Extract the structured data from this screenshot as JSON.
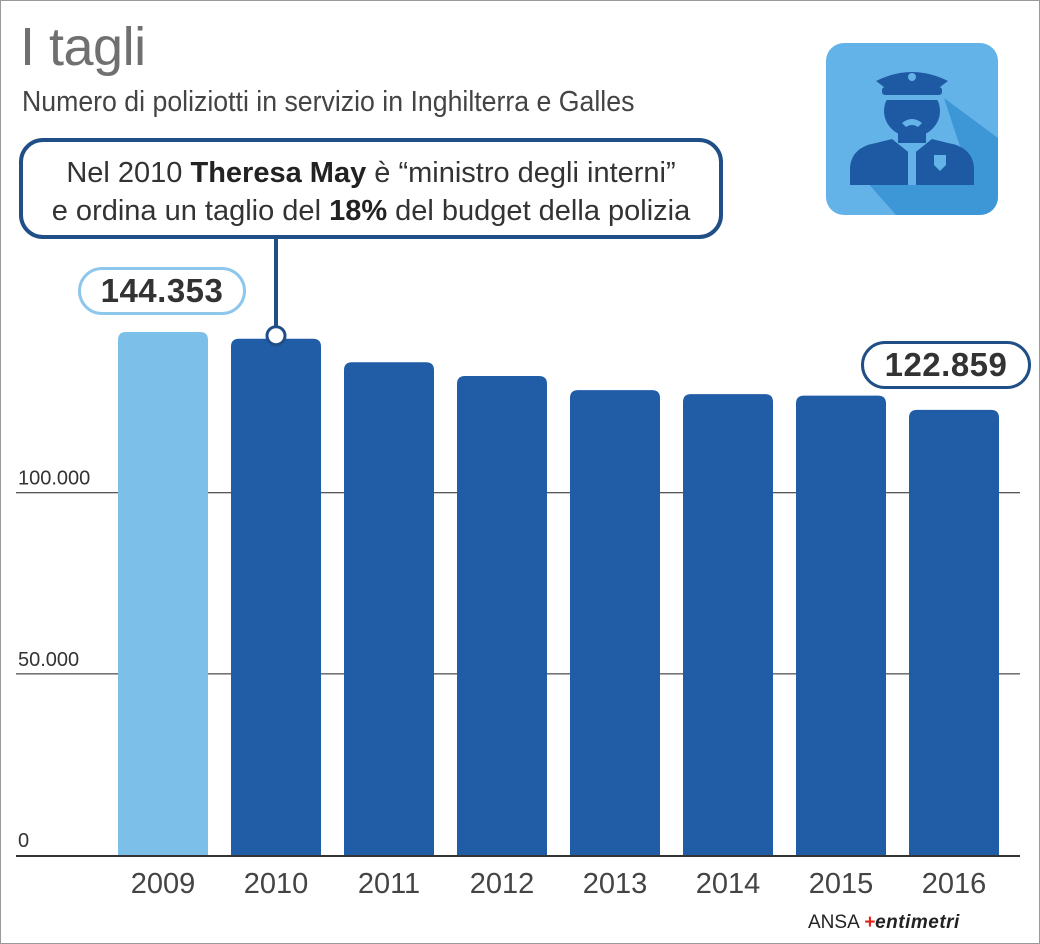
{
  "header": {
    "title": "I tagli",
    "subtitle": "Numero di poliziotti in servizio in Inghilterra e Galles"
  },
  "callout": {
    "line1_prefix": "Nel 2010 ",
    "line1_bold": "Theresa May",
    "line1_suffix": " è “ministro degli interni”",
    "line2_prefix": "e ordina un taglio del ",
    "line2_bold": "18%",
    "line2_suffix": " del budget della polizia",
    "anchor_category": "2010"
  },
  "badges": {
    "first_value_label": "144.353",
    "last_value_label": "122.859"
  },
  "icon": {
    "name": "police-officer-icon"
  },
  "brand": {
    "prefix": "ANSA",
    "mark": "+",
    "suffix": "entimetri"
  },
  "colors": {
    "bar_highlight": "#7cc0ea",
    "bar_default": "#215da7",
    "callout_border": "#1f4f86",
    "icon_bg": "#63b3e8",
    "icon_shadow": "#3d97d6",
    "icon_figure": "#1e5aa3"
  },
  "chart_data": {
    "type": "bar",
    "title": "I tagli",
    "subtitle": "Numero di poliziotti in servizio in Inghilterra e Galles",
    "categories": [
      "2009",
      "2010",
      "2011",
      "2012",
      "2013",
      "2014",
      "2015",
      "2016"
    ],
    "values": [
      144353,
      142500,
      136000,
      132200,
      128300,
      127200,
      126800,
      122859
    ],
    "highlight_index": 0,
    "yticks": [
      0,
      50000,
      100000
    ],
    "ytick_labels": [
      "0",
      "50.000",
      "100.000"
    ],
    "ylim": [
      0,
      150000
    ],
    "grid": true,
    "xlabel": "",
    "ylabel": ""
  }
}
